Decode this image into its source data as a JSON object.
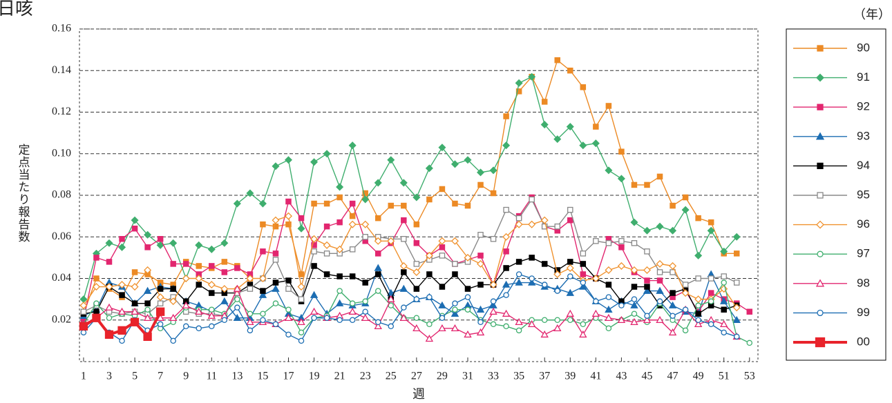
{
  "chart_data": {
    "type": "line",
    "title": "日咳",
    "y_label": "定点当たり報告数",
    "x_label": "週",
    "legend_title": "（年）",
    "x": [
      1,
      2,
      3,
      4,
      5,
      6,
      7,
      8,
      9,
      10,
      11,
      12,
      13,
      14,
      15,
      16,
      17,
      18,
      19,
      20,
      21,
      22,
      23,
      24,
      25,
      26,
      27,
      28,
      29,
      30,
      31,
      32,
      33,
      34,
      35,
      36,
      37,
      38,
      39,
      40,
      41,
      42,
      43,
      44,
      45,
      46,
      47,
      48,
      49,
      50,
      51,
      52,
      53
    ],
    "xlim": [
      0.68,
      53.66
    ],
    "xticks": [
      1,
      3,
      5,
      7,
      9,
      11,
      13,
      15,
      17,
      19,
      21,
      23,
      25,
      27,
      29,
      31,
      33,
      35,
      37,
      39,
      41,
      43,
      45,
      47,
      49,
      51,
      53
    ],
    "ylim": [
      0,
      0.16
    ],
    "yticks": [
      0.02,
      0.04,
      0.06,
      0.08,
      {
        "value": 0.1,
        "label": "0.10"
      },
      0.12,
      0.14,
      0.16
    ],
    "grid": true,
    "legend": "right",
    "series": [
      {
        "name": "90",
        "color": "#ec8a25",
        "marker": "square",
        "filled": true,
        "values": [
          0.023,
          0.04,
          0.035,
          0.031,
          0.043,
          0.042,
          0.038,
          0.037,
          0.048,
          0.046,
          0.045,
          0.048,
          0.046,
          0.04,
          0.066,
          0.065,
          0.066,
          0.042,
          0.076,
          0.076,
          0.079,
          0.07,
          0.081,
          0.069,
          0.075,
          0.075,
          0.066,
          0.078,
          0.083,
          0.076,
          0.075,
          0.085,
          0.081,
          0.118,
          0.13,
          0.137,
          0.125,
          0.145,
          0.14,
          0.132,
          0.113,
          0.123,
          0.101,
          0.085,
          0.085,
          0.089,
          0.075,
          0.079,
          0.069,
          0.067,
          0.052,
          0.052,
          null
        ]
      },
      {
        "name": "91",
        "color": "#3fae6e",
        "marker": "diamond",
        "filled": true,
        "values": [
          0.03,
          0.052,
          0.057,
          0.055,
          0.068,
          0.061,
          0.056,
          0.057,
          0.04,
          0.056,
          0.054,
          0.057,
          0.076,
          0.081,
          0.076,
          0.094,
          0.097,
          0.064,
          0.096,
          0.1,
          0.084,
          0.104,
          0.078,
          0.086,
          0.097,
          0.086,
          0.079,
          0.093,
          0.103,
          0.095,
          0.097,
          0.091,
          0.092,
          0.104,
          0.134,
          0.137,
          0.114,
          0.107,
          0.113,
          0.104,
          0.105,
          0.092,
          0.088,
          0.067,
          0.063,
          0.065,
          0.063,
          0.073,
          0.051,
          0.063,
          0.053,
          0.06,
          null
        ]
      },
      {
        "name": "92",
        "color": "#e2266f",
        "marker": "square",
        "filled": true,
        "values": [
          0.02,
          0.05,
          0.048,
          0.059,
          0.064,
          0.055,
          0.059,
          0.047,
          0.047,
          0.042,
          0.046,
          0.043,
          0.045,
          0.042,
          0.053,
          0.052,
          0.077,
          0.069,
          0.056,
          0.065,
          0.067,
          0.076,
          0.058,
          0.052,
          0.057,
          0.068,
          0.057,
          0.051,
          0.055,
          0.047,
          0.049,
          0.051,
          0.037,
          0.053,
          0.07,
          0.079,
          0.065,
          0.063,
          0.068,
          0.042,
          0.04,
          0.059,
          0.055,
          0.043,
          0.039,
          0.039,
          0.031,
          0.034,
          0.024,
          0.033,
          0.03,
          0.028,
          0.024
        ]
      },
      {
        "name": "93",
        "color": "#1c6db2",
        "marker": "triangle",
        "filled": true,
        "values": [
          0.022,
          0.025,
          0.038,
          0.036,
          0.028,
          0.034,
          0.036,
          0.035,
          0.029,
          0.027,
          0.024,
          0.029,
          0.021,
          0.021,
          0.032,
          0.035,
          0.023,
          0.021,
          0.032,
          0.023,
          0.028,
          0.027,
          0.028,
          0.045,
          0.033,
          0.035,
          0.03,
          0.031,
          0.027,
          0.023,
          0.027,
          0.025,
          0.027,
          0.037,
          0.038,
          0.038,
          0.036,
          0.035,
          0.033,
          0.036,
          0.029,
          0.025,
          0.029,
          0.027,
          0.034,
          0.034,
          0.027,
          0.024,
          0.023,
          0.042,
          0.029,
          0.02,
          null
        ]
      },
      {
        "name": "94",
        "color": "#000000",
        "marker": "square",
        "filled": true,
        "values": [
          0.023,
          0.024,
          0.036,
          0.032,
          0.028,
          0.028,
          0.035,
          0.035,
          0.029,
          0.037,
          0.033,
          0.033,
          0.033,
          0.037,
          0.034,
          0.038,
          0.039,
          0.029,
          0.046,
          0.042,
          0.041,
          0.041,
          0.038,
          0.042,
          0.03,
          0.043,
          0.035,
          0.042,
          0.036,
          0.042,
          0.035,
          0.037,
          0.037,
          0.045,
          0.048,
          0.05,
          0.047,
          0.044,
          0.048,
          0.047,
          0.04,
          0.037,
          0.029,
          0.036,
          0.036,
          0.027,
          0.033,
          0.035,
          0.023,
          0.027,
          0.025,
          0.027,
          null
        ]
      },
      {
        "name": "95",
        "color": "#888888",
        "marker": "square",
        "filled": false,
        "values": [
          0.024,
          0.027,
          0.024,
          0.023,
          0.024,
          0.023,
          0.028,
          0.031,
          0.024,
          0.023,
          0.023,
          0.022,
          0.033,
          0.035,
          0.04,
          0.049,
          0.035,
          0.03,
          0.053,
          0.052,
          0.052,
          0.054,
          0.06,
          0.06,
          0.059,
          0.059,
          0.047,
          0.049,
          0.051,
          0.047,
          0.048,
          0.061,
          0.059,
          0.073,
          0.069,
          0.078,
          0.065,
          0.065,
          0.073,
          0.052,
          0.058,
          0.057,
          0.058,
          0.057,
          0.053,
          0.043,
          0.043,
          0.037,
          0.04,
          0.04,
          0.041,
          0.038,
          null
        ]
      },
      {
        "name": "96",
        "color": "#f0922e",
        "marker": "diamond",
        "filled": false,
        "values": [
          0.027,
          0.036,
          0.036,
          0.037,
          0.036,
          0.044,
          0.031,
          0.029,
          0.04,
          0.04,
          0.037,
          0.035,
          0.035,
          0.04,
          0.04,
          0.068,
          0.07,
          0.036,
          0.059,
          0.056,
          0.054,
          0.066,
          0.066,
          0.058,
          0.058,
          0.046,
          0.043,
          0.051,
          0.058,
          0.058,
          0.05,
          0.047,
          0.037,
          0.06,
          0.066,
          0.066,
          0.068,
          0.042,
          0.045,
          0.039,
          0.04,
          0.044,
          0.046,
          0.044,
          0.044,
          0.047,
          0.046,
          0.033,
          0.03,
          0.03,
          0.035,
          0.026,
          null
        ]
      },
      {
        "name": "97",
        "color": "#3fae6e",
        "marker": "circle",
        "filled": false,
        "values": [
          0.018,
          0.028,
          0.021,
          0.023,
          0.022,
          0.025,
          0.016,
          0.019,
          0.026,
          0.025,
          0.025,
          0.023,
          0.03,
          0.023,
          0.023,
          0.028,
          0.025,
          0.014,
          0.021,
          0.022,
          0.034,
          0.028,
          0.029,
          0.034,
          0.027,
          0.021,
          0.021,
          0.018,
          0.022,
          0.025,
          0.025,
          0.02,
          0.018,
          0.017,
          0.015,
          0.02,
          0.02,
          0.02,
          0.02,
          0.018,
          0.021,
          0.016,
          0.02,
          0.023,
          0.019,
          0.028,
          0.02,
          0.015,
          0.027,
          0.029,
          0.038,
          0.012,
          0.009
        ]
      },
      {
        "name": "98",
        "color": "#e2266f",
        "marker": "triangle",
        "filled": false,
        "values": [
          0.018,
          0.021,
          0.026,
          0.024,
          0.024,
          0.021,
          0.021,
          0.021,
          0.027,
          0.024,
          0.022,
          0.022,
          0.035,
          0.019,
          0.019,
          0.018,
          0.021,
          0.019,
          0.024,
          0.021,
          0.022,
          0.024,
          0.021,
          0.017,
          0.03,
          0.021,
          0.016,
          0.011,
          0.016,
          0.016,
          0.013,
          0.014,
          0.024,
          0.023,
          0.019,
          0.018,
          0.013,
          0.016,
          0.023,
          0.013,
          0.023,
          0.021,
          0.02,
          0.019,
          0.02,
          0.02,
          0.014,
          0.025,
          0.018,
          0.02,
          0.018,
          0.012,
          null
        ]
      },
      {
        "name": "99",
        "color": "#1c6db2",
        "marker": "circle",
        "filled": false,
        "values": [
          0.014,
          0.021,
          0.014,
          0.01,
          0.02,
          0.015,
          0.018,
          0.01,
          0.017,
          0.016,
          0.017,
          0.02,
          0.026,
          0.015,
          0.02,
          0.018,
          0.013,
          0.01,
          0.021,
          0.021,
          0.02,
          0.02,
          0.024,
          0.019,
          0.017,
          0.026,
          0.03,
          0.031,
          0.021,
          0.028,
          0.031,
          0.019,
          0.029,
          0.032,
          0.042,
          0.04,
          0.037,
          0.034,
          0.041,
          0.038,
          0.029,
          0.031,
          0.027,
          0.03,
          0.022,
          0.029,
          0.022,
          0.025,
          0.02,
          0.018,
          0.014,
          0.012,
          null
        ]
      },
      {
        "name": "00",
        "color": "#e8232b",
        "marker": "square",
        "filled": true,
        "thick": true,
        "values": [
          0.017,
          0.021,
          0.013,
          0.015,
          0.019,
          0.012,
          0.024,
          null,
          null,
          null,
          null,
          null,
          null,
          null,
          null,
          null,
          null,
          null,
          null,
          null,
          null,
          null,
          null,
          null,
          null,
          null,
          null,
          null,
          null,
          null,
          null,
          null,
          null,
          null,
          null,
          null,
          null,
          null,
          null,
          null,
          null,
          null,
          null,
          null,
          null,
          null,
          null,
          null,
          null,
          null,
          null,
          null,
          null
        ]
      }
    ]
  }
}
